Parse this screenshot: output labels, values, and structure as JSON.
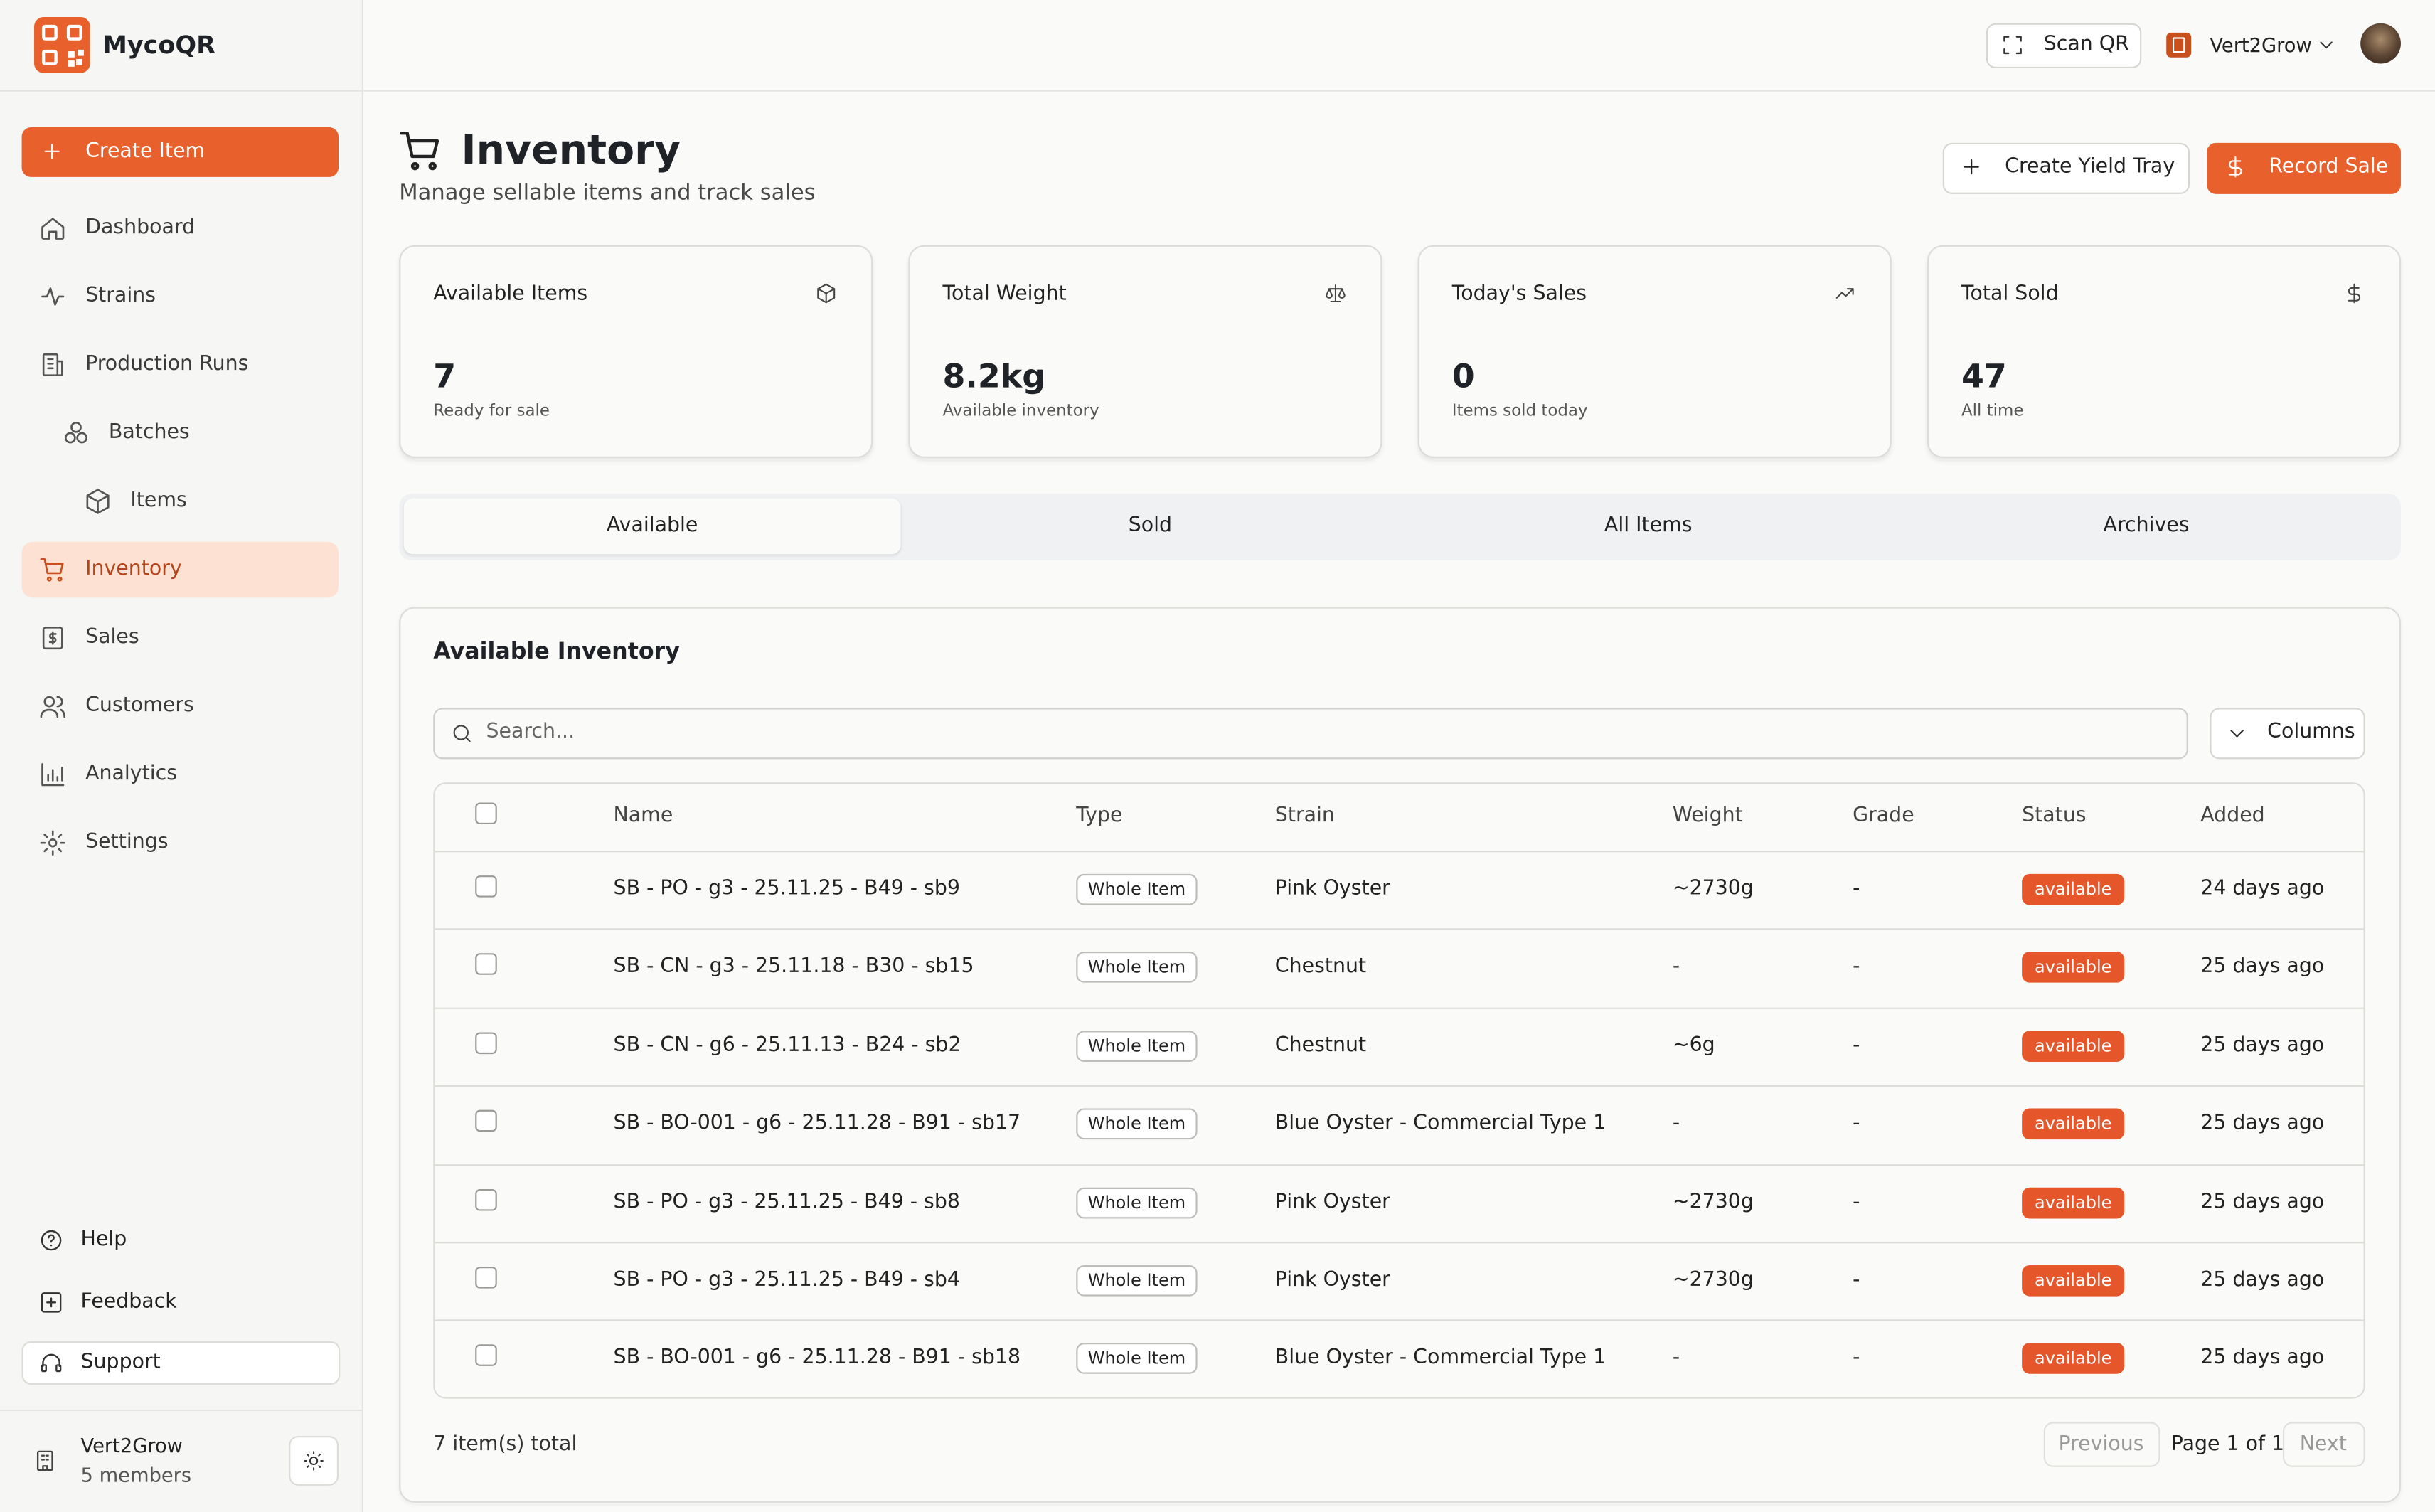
{
  "brand": "MycoQR",
  "sidebar": {
    "create_button": "Create Item",
    "nav": [
      "Dashboard",
      "Strains",
      "Production Runs",
      "Batches",
      "Items",
      "Inventory",
      "Sales",
      "Customers",
      "Analytics",
      "Settings"
    ],
    "footer_links": [
      "Help",
      "Feedback",
      "Support"
    ],
    "org": {
      "name": "Vert2Grow",
      "members": "5 members"
    }
  },
  "topbar": {
    "scan": "Scan QR",
    "org": "Vert2Grow"
  },
  "header": {
    "title": "Inventory",
    "subtitle": "Manage sellable items and track sales",
    "actions": [
      "Create Yield Tray",
      "Record Sale"
    ]
  },
  "stats": [
    {
      "label": "Available Items",
      "value": "7",
      "caption": "Ready for sale"
    },
    {
      "label": "Total Weight",
      "value": "8.2kg",
      "caption": "Available inventory"
    },
    {
      "label": "Today's Sales",
      "value": "0",
      "caption": "Items sold today"
    },
    {
      "label": "Total Sold",
      "value": "47",
      "caption": "All time"
    }
  ],
  "tabs": [
    "Available",
    "Sold",
    "All Items",
    "Archives"
  ],
  "table": {
    "title": "Available Inventory",
    "search_placeholder": "Search...",
    "columns_button": "Columns",
    "headers": [
      "Name",
      "Type",
      "Strain",
      "Weight",
      "Grade",
      "Status",
      "Added"
    ],
    "rows": [
      [
        "SB - PO - g3 - 25.11.25 - B49 - sb9",
        "Whole Item",
        "Pink Oyster",
        "~2730g",
        "-",
        "available",
        "24 days ago"
      ],
      [
        "SB - CN - g3 - 25.11.18 - B30 - sb15",
        "Whole Item",
        "Chestnut",
        "-",
        "-",
        "available",
        "25 days ago"
      ],
      [
        "SB - CN - g6 - 25.11.13 - B24 - sb2",
        "Whole Item",
        "Chestnut",
        "~6g",
        "-",
        "available",
        "25 days ago"
      ],
      [
        "SB - BO-001 - g6 - 25.11.28 - B91 - sb17",
        "Whole Item",
        "Blue Oyster - Commercial Type 1",
        "-",
        "-",
        "available",
        "25 days ago"
      ],
      [
        "SB - PO - g3 - 25.11.25 - B49 - sb8",
        "Whole Item",
        "Pink Oyster",
        "~2730g",
        "-",
        "available",
        "25 days ago"
      ],
      [
        "SB - PO - g3 - 25.11.25 - B49 - sb4",
        "Whole Item",
        "Pink Oyster",
        "~2730g",
        "-",
        "available",
        "25 days ago"
      ],
      [
        "SB - BO-001 - g6 - 25.11.28 - B91 - sb18",
        "Whole Item",
        "Blue Oyster - Commercial Type 1",
        "-",
        "-",
        "available",
        "25 days ago"
      ]
    ],
    "total": "7 item(s) total",
    "pagination": {
      "previous": "Previous",
      "page": "Page 1 of 1",
      "next": "Next"
    }
  }
}
